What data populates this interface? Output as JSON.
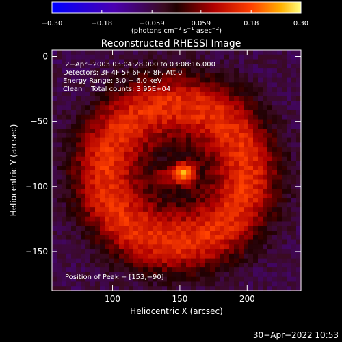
{
  "chart_data": {
    "type": "heatmap",
    "title": "Reconstructed RHESSI Image",
    "xlabel": "Heliocentric X (arcsec)",
    "ylabel": "Heliocentric Y (arcsec)",
    "xlim": [
      55,
      240
    ],
    "ylim": [
      -180,
      5
    ],
    "x_ticks": [
      "100",
      "150",
      "200"
    ],
    "x_tick_values": [
      100,
      150,
      200
    ],
    "y_ticks": [
      "0",
      "−50",
      "−100",
      "−150"
    ],
    "y_tick_values": [
      0,
      -50,
      -100,
      -150
    ],
    "colorbar": {
      "range": [
        -0.3,
        0.3
      ],
      "ticks": [
        "−0.30",
        "−0.18",
        "−0.059",
        "0.059",
        "0.18",
        "0.30"
      ],
      "tick_values": [
        -0.3,
        -0.18,
        -0.059,
        0.059,
        0.18,
        0.3
      ],
      "unit_prefix": "(photons cm",
      "unit_exp1": "−2",
      "unit_mid": " s",
      "unit_exp2": "−1",
      "unit_mid2": " asec",
      "unit_exp3": "−2",
      "unit_suffix": ")"
    },
    "annotations": [
      " 2−Apr−2003 03:04:28.000 to 03:08:16.000",
      "Detectors: 3F 4F 5F 6F 7F 8F, Att 0",
      "Energy Range: 3.0 − 6.0 keV",
      "Clean    Total counts: 3.95E+04"
    ],
    "peak_label": "Position of Peak = [153,−90]",
    "peak": {
      "x": 153,
      "y": -90,
      "value": 0.3
    },
    "ring": {
      "center_x": 147,
      "center_y": -90,
      "radius": 75,
      "width": 22,
      "value": 0.11
    }
  },
  "footer_timestamp": "30−Apr−2022 10:53"
}
